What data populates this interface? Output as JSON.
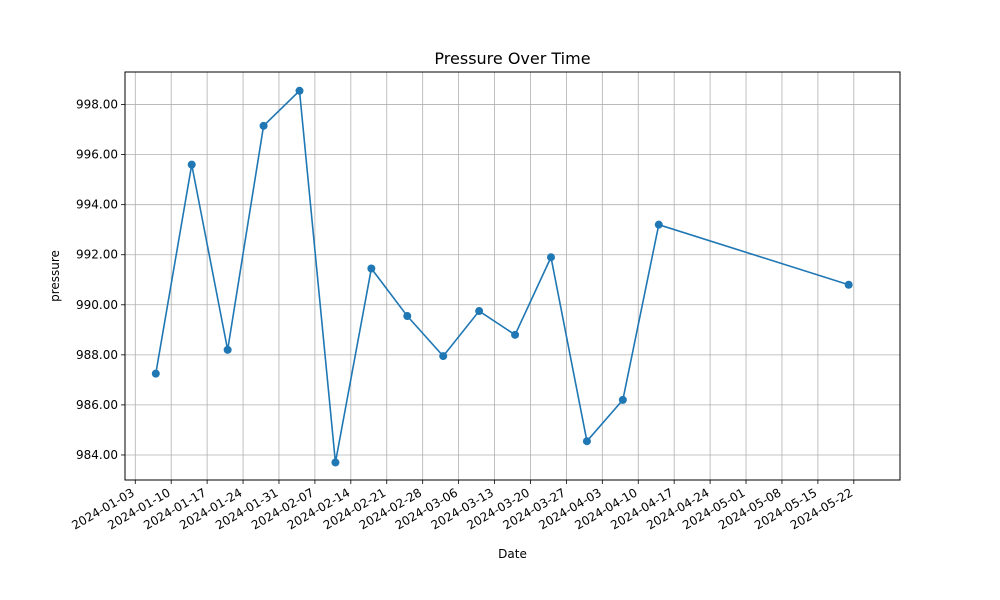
{
  "chart_data": {
    "type": "line",
    "title": "Pressure Over Time",
    "xlabel": "Date",
    "ylabel": "pressure",
    "grid": true,
    "color": "#1f77b4",
    "xlim": [
      "2024-01-01",
      "2024-05-31"
    ],
    "ylim": [
      983.0,
      999.3
    ],
    "x_ticks": [
      "2024-01-03",
      "2024-01-10",
      "2024-01-17",
      "2024-01-24",
      "2024-01-31",
      "2024-02-07",
      "2024-02-14",
      "2024-02-21",
      "2024-02-28",
      "2024-03-06",
      "2024-03-13",
      "2024-03-20",
      "2024-03-27",
      "2024-04-03",
      "2024-04-10",
      "2024-04-17",
      "2024-04-24",
      "2024-05-01",
      "2024-05-08",
      "2024-05-15",
      "2024-05-22"
    ],
    "y_ticks": [
      "984.00",
      "986.00",
      "988.00",
      "990.00",
      "992.00",
      "994.00",
      "996.00",
      "998.00"
    ],
    "series": [
      {
        "points": [
          {
            "x": "2024-01-07",
            "y": 987.25
          },
          {
            "x": "2024-01-14",
            "y": 995.6
          },
          {
            "x": "2024-01-21",
            "y": 988.2
          },
          {
            "x": "2024-01-28",
            "y": 997.15
          },
          {
            "x": "2024-02-04",
            "y": 998.55
          },
          {
            "x": "2024-02-11",
            "y": 983.7
          },
          {
            "x": "2024-02-18",
            "y": 991.45
          },
          {
            "x": "2024-02-25",
            "y": 989.55
          },
          {
            "x": "2024-03-03",
            "y": 987.95
          },
          {
            "x": "2024-03-10",
            "y": 989.75
          },
          {
            "x": "2024-03-17",
            "y": 988.8
          },
          {
            "x": "2024-03-24",
            "y": 991.9
          },
          {
            "x": "2024-03-31",
            "y": 984.55
          },
          {
            "x": "2024-04-07",
            "y": 986.2
          },
          {
            "x": "2024-04-14",
            "y": 993.2
          },
          {
            "x": "2024-05-21",
            "y": 990.8
          }
        ]
      }
    ]
  }
}
